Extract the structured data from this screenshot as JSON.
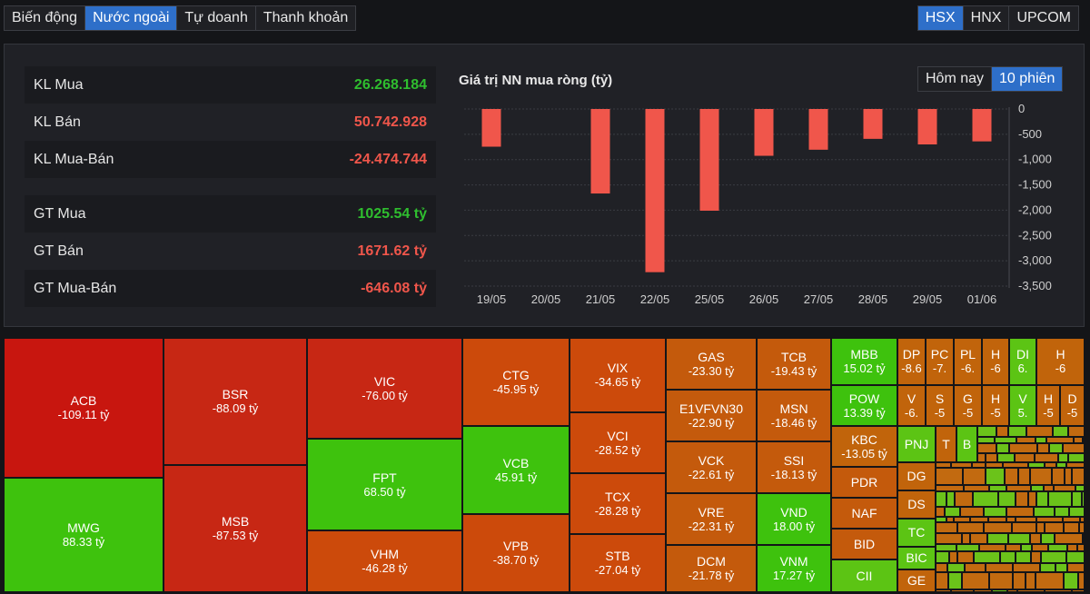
{
  "main_tabs": [
    "Biến động",
    "Nước ngoài",
    "Tự doanh",
    "Thanh khoản"
  ],
  "main_tabs_active": 1,
  "exchange_tabs": [
    "HSX",
    "HNX",
    "UPCOM"
  ],
  "exchange_tabs_active": 0,
  "stats": {
    "kl_mua": {
      "label": "KL Mua",
      "value": "26.268.184"
    },
    "kl_ban": {
      "label": "KL Bán",
      "value": "50.742.928"
    },
    "kl_mua_ban": {
      "label": "KL Mua-Bán",
      "value": "-24.474.744"
    },
    "gt_mua": {
      "label": "GT Mua",
      "value": "1025.54 tỷ"
    },
    "gt_ban": {
      "label": "GT Bán",
      "value": "1671.62 tỷ"
    },
    "gt_mua_ban": {
      "label": "GT Mua-Bán",
      "value": "-646.08 tỷ"
    }
  },
  "chart_title": "Giá trị NN mua ròng (tỷ)",
  "range_tabs": [
    "Hôm nay",
    "10 phiên"
  ],
  "range_tabs_active": 1,
  "colors": {
    "negative": "#f0564b",
    "positive": "#2fbe2f",
    "accent": "#2e6fc9"
  },
  "chart_data": {
    "type": "bar",
    "title": "Giá trị NN mua ròng (tỷ)",
    "categories": [
      "19/05",
      "20/05",
      "21/05",
      "22/05",
      "25/05",
      "26/05",
      "27/05",
      "28/05",
      "29/05",
      "01/06"
    ],
    "values": [
      -745,
      0,
      -1670,
      -3225,
      -2010,
      -925,
      -805,
      -590,
      -700,
      -640
    ],
    "yticks": [
      "0",
      "-500",
      "-1,000",
      "-1,500",
      "-2,000",
      "-2,500",
      "-3,000",
      "-3,500"
    ],
    "ylim": [
      -3500,
      0
    ],
    "grid": true,
    "yaxis_position": "right"
  },
  "treemap": [
    {
      "sym": "ACB",
      "val": "-109.11 tỷ"
    },
    {
      "sym": "MWG",
      "val": "88.33 tỷ"
    },
    {
      "sym": "BSR",
      "val": "-88.09 tỷ"
    },
    {
      "sym": "MSB",
      "val": "-87.53 tỷ"
    },
    {
      "sym": "VIC",
      "val": "-76.00 tỷ"
    },
    {
      "sym": "FPT",
      "val": "68.50 tỷ"
    },
    {
      "sym": "VHM",
      "val": "-46.28 tỷ"
    },
    {
      "sym": "CTG",
      "val": "-45.95 tỷ"
    },
    {
      "sym": "VCB",
      "val": "45.91 tỷ"
    },
    {
      "sym": "VPB",
      "val": "-38.70 tỷ"
    },
    {
      "sym": "VIX",
      "val": "-34.65 tỷ"
    },
    {
      "sym": "VCI",
      "val": "-28.52 tỷ"
    },
    {
      "sym": "TCX",
      "val": "-28.28 tỷ"
    },
    {
      "sym": "STB",
      "val": "-27.04 tỷ"
    },
    {
      "sym": "GAS",
      "val": "-23.30 tỷ"
    },
    {
      "sym": "E1VFVN30",
      "val": "-22.90 tỷ"
    },
    {
      "sym": "VCK",
      "val": "-22.61 tỷ"
    },
    {
      "sym": "VRE",
      "val": "-22.31 tỷ"
    },
    {
      "sym": "DCM",
      "val": "-21.78 tỷ"
    },
    {
      "sym": "TCB",
      "val": "-19.43 tỷ"
    },
    {
      "sym": "MSN",
      "val": "-18.46 tỷ"
    },
    {
      "sym": "SSI",
      "val": "-18.13 tỷ"
    },
    {
      "sym": "VND",
      "val": "18.00 tỷ"
    },
    {
      "sym": "VNM",
      "val": "17.27 tỷ"
    },
    {
      "sym": "MBB",
      "val": "15.02 tỷ"
    },
    {
      "sym": "POW",
      "val": "13.39 tỷ"
    },
    {
      "sym": "KBC",
      "val": "-13.05 tỷ"
    },
    {
      "sym": "PDR",
      "val": ""
    },
    {
      "sym": "NAF",
      "val": ""
    },
    {
      "sym": "BID",
      "val": ""
    },
    {
      "sym": "CII",
      "val": ""
    },
    {
      "sym": "DP",
      "val": "-8.6"
    },
    {
      "sym": "PC",
      "val": "-7."
    },
    {
      "sym": "PL",
      "val": "-6."
    },
    {
      "sym": "H",
      "val": "-6"
    },
    {
      "sym": "DI",
      "val": "6."
    },
    {
      "sym": "H",
      "val": "-6"
    },
    {
      "sym": "V",
      "val": "-6."
    },
    {
      "sym": "S",
      "val": "-5"
    },
    {
      "sym": "G",
      "val": "-5"
    },
    {
      "sym": "H",
      "val": "-5"
    },
    {
      "sym": "V",
      "val": "5."
    },
    {
      "sym": "H",
      "val": "-5"
    },
    {
      "sym": "D",
      "val": "-5"
    },
    {
      "sym": "PNJ",
      "val": ""
    },
    {
      "sym": "T",
      "val": ""
    },
    {
      "sym": "B",
      "val": ""
    },
    {
      "sym": "DG",
      "val": ""
    },
    {
      "sym": "DS",
      "val": ""
    },
    {
      "sym": "TC",
      "val": ""
    },
    {
      "sym": "BIC",
      "val": ""
    },
    {
      "sym": "GE",
      "val": ""
    }
  ]
}
